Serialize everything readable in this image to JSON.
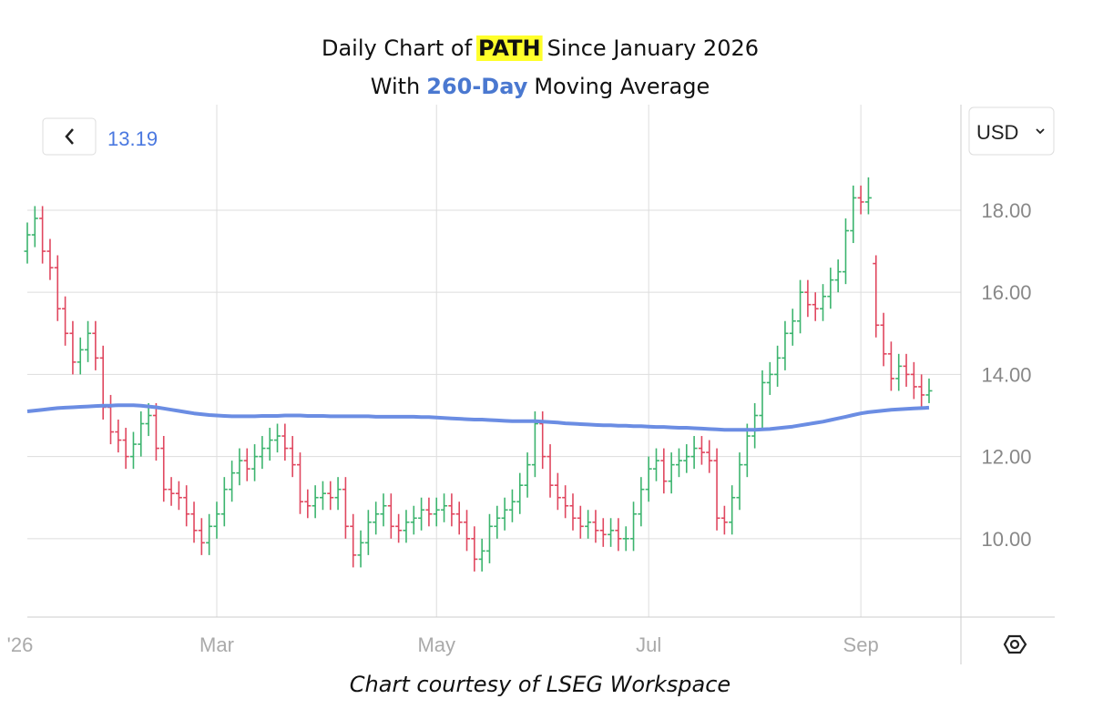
{
  "chart_data": {
    "type": "ohlc",
    "title": {
      "prefix": "Daily Chart of",
      "ticker": "PATH",
      "suffix": "Since January 2026"
    },
    "subtitle": {
      "prefix": "With",
      "highlight": "260-Day",
      "suffix": "Moving Average"
    },
    "currency": "USD",
    "source": "Chart courtesy of LSEG Workspace",
    "categories": [
      "'26",
      null,
      null,
      null,
      null,
      null,
      null,
      null,
      null,
      null,
      null,
      null,
      null,
      null,
      null,
      null,
      null,
      null,
      null,
      null,
      null,
      null,
      null,
      null,
      null,
      "Mar",
      null,
      null,
      null,
      null,
      null,
      null,
      null,
      null,
      null,
      null,
      null,
      null,
      null,
      null,
      null,
      null,
      null,
      null,
      null,
      null,
      null,
      null,
      null,
      null,
      null,
      null,
      null,
      null,
      "May",
      null,
      null,
      null,
      null,
      null,
      null,
      null,
      null,
      null,
      null,
      null,
      null,
      null,
      null,
      null,
      null,
      null,
      null,
      null,
      null,
      null,
      null,
      null,
      null,
      null,
      null,
      null,
      "Jul",
      null,
      null,
      null,
      null,
      null,
      null,
      null,
      null,
      null,
      null,
      null,
      null,
      null,
      null,
      null,
      null,
      null,
      null,
      null,
      null,
      null,
      null,
      null,
      null,
      null,
      null,
      null,
      "Sep",
      null,
      null,
      null,
      null,
      null,
      null,
      null,
      null,
      null
    ],
    "up_color": "#3cb46e",
    "down_color": "#e0475f",
    "series": [
      {
        "open": [
          17.0,
          17.4,
          17.8,
          17.0,
          16.6,
          15.6,
          15.0,
          14.3,
          14.6,
          15.0,
          14.4,
          13.2,
          12.6,
          12.4,
          12.0,
          12.3,
          12.8,
          13.0,
          12.2,
          11.2,
          11.1,
          11.0,
          10.6,
          10.2,
          9.9,
          10.3,
          10.6,
          11.2,
          11.6,
          11.9,
          11.7,
          12.0,
          12.2,
          12.4,
          12.5,
          12.2,
          11.8,
          10.9,
          10.8,
          11.0,
          11.1,
          11.0,
          11.2,
          10.3,
          9.6,
          9.9,
          10.4,
          10.6,
          10.8,
          10.3,
          10.2,
          10.4,
          10.5,
          10.7,
          10.6,
          10.7,
          10.8,
          10.6,
          10.4,
          10.0,
          9.5,
          9.7,
          10.3,
          10.5,
          10.7,
          10.9,
          11.3,
          11.8,
          12.8,
          12.0,
          11.3,
          11.0,
          10.8,
          10.5,
          10.3,
          10.4,
          10.2,
          10.1,
          10.2,
          10.0,
          10.0,
          10.6,
          11.2,
          11.7,
          11.9,
          11.4,
          11.8,
          11.9,
          12.0,
          12.2,
          12.1,
          11.9,
          10.5,
          10.4,
          11.0,
          11.8,
          12.5,
          13.0,
          13.8,
          14.0,
          14.4,
          15.0,
          15.3,
          16.0,
          15.7,
          15.6,
          15.9,
          16.3,
          16.5,
          17.5,
          18.3,
          18.2,
          16.7,
          15.2,
          14.5,
          13.9,
          14.2,
          14.0,
          13.7,
          13.5
        ],
        "high": [
          17.7,
          18.1,
          18.1,
          17.3,
          16.9,
          15.9,
          15.3,
          14.9,
          15.3,
          15.3,
          14.7,
          13.5,
          12.9,
          12.7,
          12.6,
          13.1,
          13.3,
          13.3,
          12.5,
          11.5,
          11.4,
          11.3,
          10.9,
          10.5,
          10.6,
          10.9,
          11.5,
          11.9,
          12.2,
          12.2,
          12.3,
          12.5,
          12.7,
          12.8,
          12.8,
          12.5,
          12.1,
          11.2,
          11.3,
          11.4,
          11.4,
          11.5,
          11.5,
          10.6,
          10.2,
          10.7,
          10.9,
          11.1,
          11.1,
          10.6,
          10.7,
          10.8,
          11.0,
          11.0,
          11.0,
          11.1,
          11.1,
          10.9,
          10.7,
          10.3,
          10.0,
          10.6,
          10.8,
          11.0,
          11.2,
          11.6,
          12.1,
          13.1,
          13.1,
          12.3,
          11.6,
          11.3,
          11.1,
          10.8,
          10.7,
          10.7,
          10.5,
          10.5,
          10.5,
          10.3,
          10.9,
          11.5,
          12.0,
          12.2,
          12.2,
          12.1,
          12.2,
          12.3,
          12.5,
          12.5,
          12.4,
          12.2,
          10.8,
          11.3,
          12.1,
          12.8,
          13.3,
          14.1,
          14.3,
          14.7,
          15.3,
          15.6,
          16.3,
          16.3,
          16.0,
          16.2,
          16.6,
          16.8,
          17.8,
          18.6,
          18.6,
          18.8,
          16.9,
          15.5,
          14.8,
          14.5,
          14.5,
          14.3,
          14.0,
          13.9
        ],
        "low": [
          16.7,
          17.1,
          16.7,
          16.3,
          15.3,
          14.7,
          14.0,
          14.0,
          14.3,
          14.1,
          12.9,
          12.3,
          12.1,
          11.7,
          11.7,
          12.0,
          12.5,
          11.9,
          10.9,
          10.8,
          10.7,
          10.3,
          9.9,
          9.6,
          9.6,
          10.0,
          10.3,
          10.9,
          11.3,
          11.4,
          11.4,
          11.7,
          11.9,
          12.1,
          11.9,
          11.5,
          10.6,
          10.5,
          10.5,
          10.7,
          10.7,
          10.7,
          10.0,
          9.3,
          9.3,
          9.6,
          10.1,
          10.3,
          10.0,
          9.9,
          9.9,
          10.1,
          10.2,
          10.3,
          10.3,
          10.4,
          10.3,
          10.1,
          9.7,
          9.2,
          9.2,
          9.4,
          10.0,
          10.2,
          10.4,
          10.6,
          11.0,
          11.5,
          11.7,
          11.0,
          10.7,
          10.5,
          10.2,
          10.0,
          10.0,
          9.9,
          9.8,
          9.8,
          9.7,
          9.7,
          9.7,
          10.3,
          10.9,
          11.4,
          11.1,
          11.1,
          11.5,
          11.6,
          11.7,
          11.8,
          11.6,
          10.2,
          10.1,
          10.1,
          10.7,
          11.5,
          12.2,
          12.7,
          13.5,
          13.7,
          14.1,
          14.7,
          15.0,
          15.4,
          15.3,
          15.3,
          15.6,
          16.0,
          16.2,
          17.2,
          17.9,
          17.9,
          14.9,
          14.2,
          13.6,
          13.6,
          13.7,
          13.4,
          13.2,
          13.3
        ],
        "close": [
          17.4,
          17.8,
          17.0,
          16.6,
          15.6,
          15.0,
          14.3,
          14.6,
          15.0,
          14.4,
          13.2,
          12.6,
          12.4,
          12.0,
          12.3,
          12.8,
          13.0,
          12.2,
          11.2,
          11.1,
          11.0,
          10.6,
          10.2,
          9.9,
          10.3,
          10.6,
          11.2,
          11.6,
          11.9,
          11.7,
          12.0,
          12.2,
          12.4,
          12.5,
          12.2,
          11.8,
          10.9,
          10.8,
          11.0,
          11.1,
          11.0,
          11.2,
          10.3,
          9.6,
          9.9,
          10.4,
          10.6,
          10.8,
          10.3,
          10.2,
          10.4,
          10.5,
          10.7,
          10.6,
          10.7,
          10.8,
          10.6,
          10.4,
          10.0,
          9.5,
          9.7,
          10.3,
          10.5,
          10.7,
          10.9,
          11.3,
          11.8,
          12.8,
          12.0,
          11.3,
          11.0,
          10.8,
          10.5,
          10.3,
          10.4,
          10.2,
          10.1,
          10.2,
          10.0,
          10.0,
          10.6,
          11.2,
          11.7,
          11.9,
          11.4,
          11.8,
          11.9,
          12.0,
          12.2,
          12.1,
          11.9,
          10.5,
          10.4,
          11.0,
          11.8,
          12.5,
          13.0,
          13.8,
          14.0,
          14.4,
          15.0,
          15.3,
          16.0,
          15.7,
          15.6,
          15.9,
          16.3,
          16.5,
          17.5,
          18.3,
          18.2,
          18.3,
          15.2,
          14.5,
          13.9,
          14.2,
          14.0,
          13.7,
          13.5,
          13.6
        ]
      },
      {
        "color": "#6b8de3",
        "values": [
          13.1,
          13.12,
          13.14,
          13.16,
          13.18,
          13.19,
          13.2,
          13.21,
          13.22,
          13.23,
          13.24,
          13.24,
          13.25,
          13.25,
          13.25,
          13.24,
          13.22,
          13.2,
          13.17,
          13.14,
          13.11,
          13.08,
          13.05,
          13.03,
          13.01,
          13.0,
          12.99,
          12.98,
          12.98,
          12.98,
          12.98,
          12.99,
          12.99,
          12.99,
          13.0,
          13.0,
          13.0,
          12.99,
          12.99,
          12.99,
          12.98,
          12.98,
          12.98,
          12.98,
          12.98,
          12.98,
          12.97,
          12.97,
          12.97,
          12.97,
          12.97,
          12.97,
          12.96,
          12.96,
          12.95,
          12.94,
          12.93,
          12.92,
          12.91,
          12.9,
          12.9,
          12.89,
          12.88,
          12.87,
          12.86,
          12.86,
          12.86,
          12.86,
          12.85,
          12.84,
          12.83,
          12.81,
          12.8,
          12.79,
          12.78,
          12.77,
          12.76,
          12.76,
          12.75,
          12.75,
          12.74,
          12.74,
          12.73,
          12.72,
          12.72,
          12.71,
          12.7,
          12.7,
          12.69,
          12.68,
          12.67,
          12.66,
          12.65,
          12.65,
          12.65,
          12.65,
          12.65,
          12.66,
          12.67,
          12.69,
          12.71,
          12.73,
          12.76,
          12.79,
          12.82,
          12.85,
          12.89,
          12.93,
          12.97,
          13.01,
          13.05,
          13.08,
          13.1,
          13.12,
          13.14,
          13.15,
          13.16,
          13.17,
          13.18,
          13.19
        ]
      }
    ],
    "ylim": [
      8.09,
      20.57
    ],
    "yticks": [
      {
        "value": 10,
        "label": "10.00"
      },
      {
        "value": 12,
        "label": "12.00"
      },
      {
        "value": 14,
        "label": "14.00"
      },
      {
        "value": 16,
        "label": "16.00"
      },
      {
        "value": 18,
        "label": "18.00"
      }
    ],
    "grid": true
  }
}
